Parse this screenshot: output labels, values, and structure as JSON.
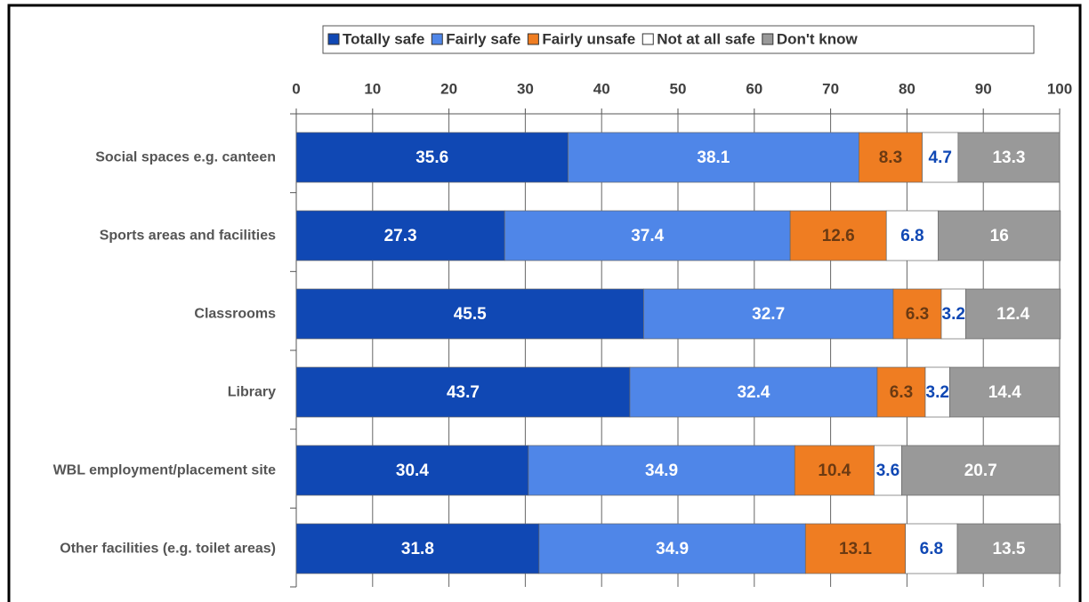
{
  "chart_data": {
    "type": "stacked_barh",
    "categories": [
      "Social spaces e.g. canteen",
      "Sports areas and facilities",
      "Classrooms",
      "Library",
      "WBL employment/placement site",
      "Other facilities (e.g. toilet areas)"
    ],
    "series": [
      {
        "name": "Totally safe",
        "color": "#1048b4",
        "label_color": "#ffffff",
        "values": [
          35.6,
          27.3,
          45.5,
          43.7,
          30.4,
          31.8
        ]
      },
      {
        "name": "Fairly safe",
        "color": "#4f86e8",
        "label_color": "#ffffff",
        "values": [
          38.1,
          37.4,
          32.7,
          32.4,
          34.9,
          34.9
        ]
      },
      {
        "name": "Fairly unsafe",
        "color": "#ef7d22",
        "label_color": "#6b3a12",
        "values": [
          8.3,
          12.6,
          6.3,
          6.3,
          10.4,
          13.1
        ]
      },
      {
        "name": "Not at all safe",
        "color": "#ffffff",
        "label_color": "#1048b4",
        "values": [
          4.7,
          6.8,
          3.2,
          3.2,
          3.6,
          6.8
        ]
      },
      {
        "name": "Don't know",
        "color": "#999999",
        "label_color": "#ffffff",
        "values": [
          13.3,
          16,
          12.4,
          14.4,
          20.7,
          13.5
        ]
      }
    ],
    "xlim": [
      0,
      100
    ],
    "xticks": [
      0,
      10,
      20,
      30,
      40,
      50,
      60,
      70,
      80,
      90,
      100
    ],
    "grid": true,
    "legend": "top"
  }
}
